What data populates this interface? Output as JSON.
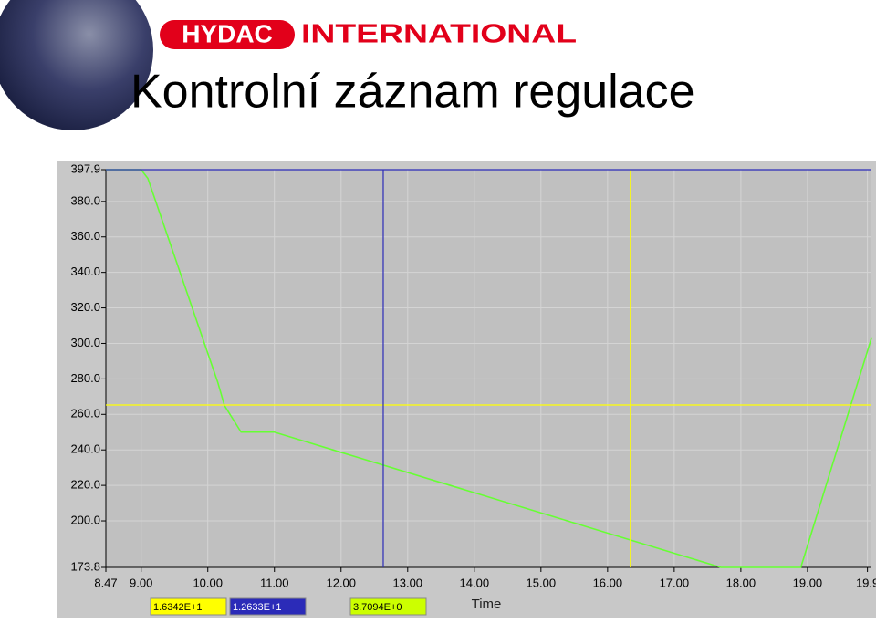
{
  "header": {
    "brand": "HYDAC",
    "brand_suffix": "INTERNATIONAL",
    "title": "Kontrolní záznam regulace"
  },
  "chart_data": {
    "type": "line",
    "x_label": "Time",
    "x": [
      8.47,
      9.0,
      9.1,
      10.15,
      10.25,
      10.5,
      11.0,
      17.7,
      18.9,
      19.96
    ],
    "values": [
      397.9,
      397.9,
      393,
      278,
      265,
      250,
      250,
      173.8,
      173.8,
      303
    ],
    "color": "#66ff33",
    "xlim": [
      8.47,
      19.96
    ],
    "ylim": [
      173.8,
      397.9
    ],
    "xticks": [
      8.47,
      {
        "value": 9,
        "label": "9.00"
      },
      {
        "value": 10,
        "label": "10.00"
      },
      {
        "value": 11,
        "label": "11.00"
      },
      {
        "value": 12,
        "label": "12.00"
      },
      {
        "value": 13,
        "label": "13.00"
      },
      {
        "value": 14,
        "label": "14.00"
      },
      {
        "value": 15,
        "label": "15.00"
      },
      {
        "value": 16,
        "label": "16.00"
      },
      {
        "value": 17,
        "label": "17.00"
      },
      {
        "value": 18,
        "label": "18.00"
      },
      {
        "value": 19,
        "label": "19.00"
      },
      {
        "value": 19.9,
        "label": "19.9"
      }
    ],
    "yticks": [
      173.8,
      {
        "value": 200,
        "label": "200.0"
      },
      {
        "value": 220,
        "label": "220.0"
      },
      {
        "value": 240,
        "label": "240.0"
      },
      {
        "value": 260,
        "label": "260.0"
      },
      {
        "value": 280,
        "label": "280.0"
      },
      {
        "value": 300,
        "label": "300.0"
      },
      {
        "value": 320,
        "label": "320.0"
      },
      {
        "value": 340,
        "label": "340.0"
      },
      {
        "value": 360,
        "label": "360.0"
      },
      {
        "value": 380,
        "label": "380.0"
      },
      397.9
    ],
    "grid": true,
    "cursors": [
      {
        "x": 16.342,
        "x_label": "1.6342E+1",
        "y": 265.3,
        "color": "#ffff00"
      },
      {
        "x": 12.633,
        "x_label": "1.2633E+1",
        "y": 397.9,
        "color": "#2b2bb8"
      }
    ],
    "readout": "3.7094E+0",
    "readout_color": "#ccff00"
  }
}
